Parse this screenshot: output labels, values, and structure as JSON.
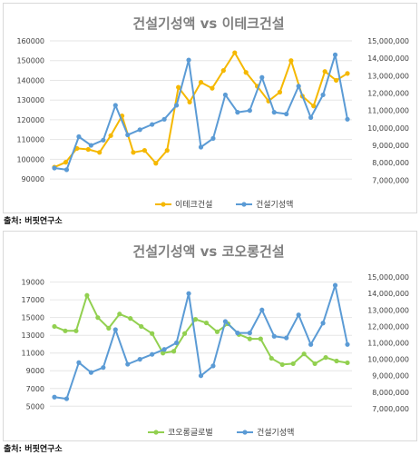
{
  "chart_data": [
    {
      "type": "line",
      "title": "건설기성액 vs 이테크건설",
      "source": "출처: 버핏연구소",
      "left_axis": {
        "min": 85000,
        "max": 160000,
        "ticks": [
          90000,
          100000,
          110000,
          120000,
          130000,
          140000,
          150000,
          160000
        ],
        "tick_labels": [
          "90000",
          "100000",
          "110000",
          "120000",
          "130000",
          "140000",
          "150000",
          "160000"
        ]
      },
      "right_axis": {
        "min": 6500000,
        "max": 15000000,
        "ticks": [
          7000000,
          8000000,
          9000000,
          10000000,
          11000000,
          12000000,
          13000000,
          14000000,
          15000000
        ],
        "tick_labels": [
          "7,000,000",
          "8,000,000",
          "9,000,000",
          "10,000,000",
          "11,000,000",
          "12,000,000",
          "13,000,000",
          "14,000,000",
          "15,000,000"
        ]
      },
      "grid": true,
      "legend_position": "bottom",
      "series": [
        {
          "name": "이테크건설",
          "axis": "left",
          "color": "#f5b800",
          "values": [
            96000,
            98500,
            105500,
            105000,
            103500,
            112000,
            122000,
            103500,
            104500,
            98000,
            104500,
            136500,
            129000,
            139000,
            136000,
            145000,
            154000,
            144000,
            137000,
            129500,
            134000,
            150000,
            132000,
            127000,
            144500,
            140000,
            143500
          ]
        },
        {
          "name": "건설기성액",
          "axis": "right",
          "color": "#5b9bd5",
          "values": [
            7700000,
            7600000,
            9500000,
            9000000,
            9300000,
            11300000,
            9600000,
            9900000,
            10200000,
            10500000,
            11300000,
            13900000,
            8900000,
            9400000,
            11900000,
            10900000,
            11000000,
            12900000,
            10900000,
            10800000,
            12400000,
            10600000,
            11900000,
            14200000,
            10500000
          ]
        }
      ]
    },
    {
      "type": "line",
      "title": "건설기성액 vs 코오롱건설",
      "source": "출처: 버핏연구소",
      "left_axis": {
        "min": 3800,
        "max": 20500,
        "ticks": [
          5000,
          7000,
          9000,
          11000,
          13000,
          15000,
          17000,
          19000
        ],
        "tick_labels": [
          "5000",
          "7000",
          "9000",
          "11000",
          "13000",
          "15000",
          "17000",
          "19000"
        ]
      },
      "right_axis": {
        "min": 6500000,
        "max": 15500000,
        "ticks": [
          7000000,
          8000000,
          9000000,
          10000000,
          11000000,
          12000000,
          13000000,
          14000000,
          15000000
        ],
        "tick_labels": [
          "7,000,000",
          "8,000,000",
          "9,000,000",
          "10,000,000",
          "11,000,000",
          "12,000,000",
          "13,000,000",
          "14,000,000",
          "15,000,000"
        ]
      },
      "grid": true,
      "legend_position": "bottom",
      "series": [
        {
          "name": "코오롱글로벌",
          "axis": "left",
          "color": "#92d050",
          "values": [
            14000,
            13500,
            13500,
            17500,
            15000,
            13800,
            15400,
            14900,
            14000,
            13200,
            11000,
            11200,
            13200,
            14800,
            14400,
            13400,
            14300,
            13100,
            12600,
            12600,
            10400,
            9700,
            9800,
            10900,
            9800,
            10500,
            10100,
            9900
          ]
        },
        {
          "name": "건설기성액",
          "axis": "right",
          "color": "#5b9bd5",
          "values": [
            7700000,
            7600000,
            9800000,
            9200000,
            9500000,
            11800000,
            9700000,
            10000000,
            10300000,
            10600000,
            11000000,
            14000000,
            9000000,
            9600000,
            12300000,
            11600000,
            11600000,
            13000000,
            11400000,
            11300000,
            12700000,
            10900000,
            12200000,
            14500000,
            10900000
          ]
        }
      ]
    }
  ]
}
